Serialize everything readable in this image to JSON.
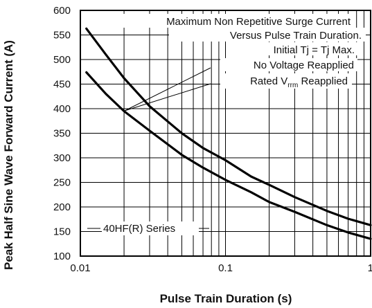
{
  "chart_data": {
    "type": "line",
    "xscale": "log",
    "xlim": [
      0.01,
      1
    ],
    "ylim": [
      100,
      600
    ],
    "xlabel": "Pulse Train  Duration (s)",
    "ylabel": "Peak Half Sine Wave Forward Current (A)",
    "x_ticks": [
      {
        "value": 0.01,
        "label": "0.01"
      },
      {
        "value": 0.1,
        "label": "0.1"
      },
      {
        "value": 1,
        "label": "1"
      }
    ],
    "y_ticks": [
      {
        "value": 100,
        "label": "100"
      },
      {
        "value": 150,
        "label": "150"
      },
      {
        "value": 200,
        "label": "200"
      },
      {
        "value": 250,
        "label": "250"
      },
      {
        "value": 300,
        "label": "300"
      },
      {
        "value": 350,
        "label": "350"
      },
      {
        "value": 400,
        "label": "400"
      },
      {
        "value": 450,
        "label": "450"
      },
      {
        "value": 500,
        "label": "500"
      },
      {
        "value": 550,
        "label": "550"
      },
      {
        "value": 600,
        "label": "600"
      }
    ],
    "grid": true,
    "annotations": {
      "line1": "Maximum Non Repetitive Surge Current",
      "line2": "Versus Pulse Train Duration.",
      "line3": "Initial Tj = Tj Max.",
      "line4": "No Voltage Reapplied",
      "line5_main": "Rated V",
      "line5_sub": "rrm",
      "line5_tail": " Reapplied",
      "series_label": "40HF(R) Series"
    },
    "series": [
      {
        "x": [
          0.011,
          0.015,
          0.02,
          0.03,
          0.05,
          0.07,
          0.1,
          0.15,
          0.2,
          0.3,
          0.5,
          0.7,
          1.0
        ],
        "values": [
          563,
          510,
          462,
          405,
          350,
          320,
          295,
          262,
          245,
          220,
          192,
          176,
          163
        ]
      },
      {
        "x": [
          0.011,
          0.015,
          0.02,
          0.03,
          0.05,
          0.07,
          0.1,
          0.15,
          0.2,
          0.3,
          0.5,
          0.7,
          1.0
        ],
        "values": [
          474,
          430,
          395,
          355,
          306,
          280,
          255,
          230,
          210,
          190,
          163,
          148,
          135
        ]
      }
    ]
  }
}
